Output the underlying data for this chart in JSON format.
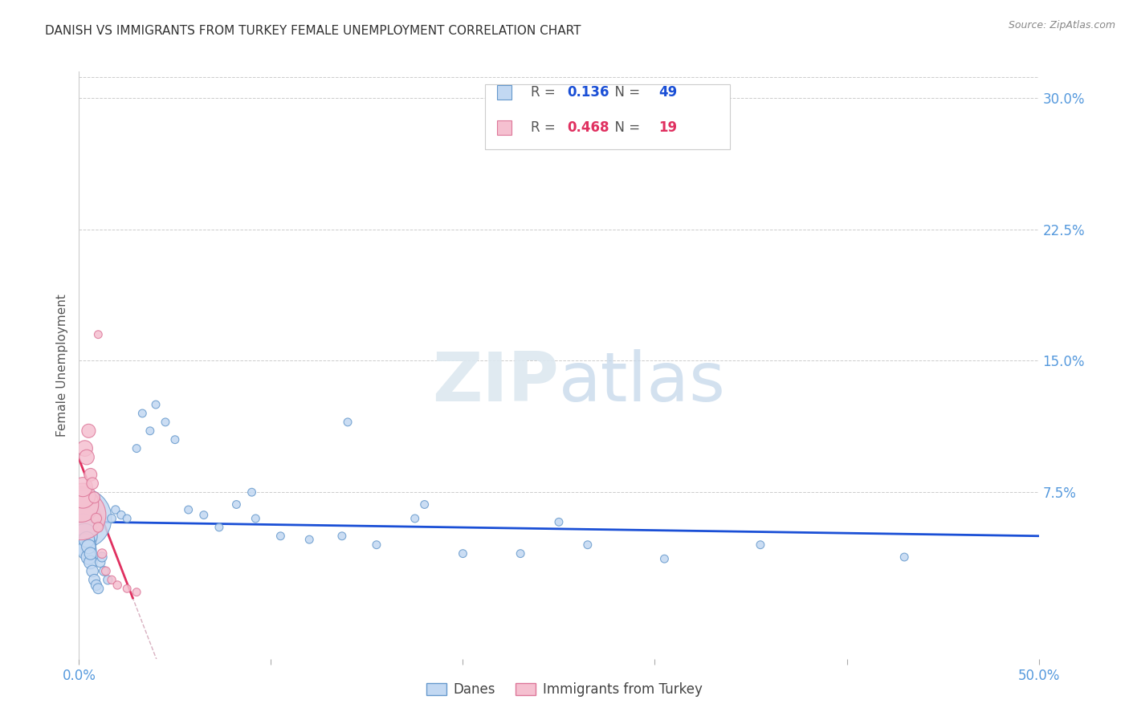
{
  "title": "DANISH VS IMMIGRANTS FROM TURKEY FEMALE UNEMPLOYMENT CORRELATION CHART",
  "source": "Source: ZipAtlas.com",
  "ylabel": "Female Unemployment",
  "xlim": [
    0.0,
    0.5
  ],
  "ylim": [
    -0.02,
    0.315
  ],
  "danes_color": "#c2d8f2",
  "danes_edge_color": "#6699cc",
  "turkey_color": "#f5c0d0",
  "turkey_edge_color": "#dd7799",
  "danes_R": 0.136,
  "danes_N": 49,
  "turkey_R": 0.468,
  "turkey_N": 19,
  "danes_line_color": "#1a4fd6",
  "turkey_line_color": "#e03060",
  "background_color": "#ffffff",
  "legend_danes_label": "Danes",
  "legend_turkey_label": "Immigrants from Turkey",
  "danes_x": [
    0.001,
    0.002,
    0.002,
    0.003,
    0.003,
    0.004,
    0.004,
    0.005,
    0.005,
    0.006,
    0.006,
    0.007,
    0.008,
    0.009,
    0.01,
    0.011,
    0.012,
    0.013,
    0.015,
    0.017,
    0.019,
    0.022,
    0.025,
    0.03,
    0.033,
    0.037,
    0.04,
    0.045,
    0.05,
    0.057,
    0.065,
    0.073,
    0.082,
    0.092,
    0.105,
    0.12,
    0.137,
    0.155,
    0.175,
    0.2,
    0.23,
    0.265,
    0.305,
    0.355,
    0.25,
    0.18,
    0.14,
    0.09,
    0.43
  ],
  "danes_y": [
    0.06,
    0.058,
    0.055,
    0.05,
    0.045,
    0.042,
    0.048,
    0.038,
    0.044,
    0.035,
    0.04,
    0.03,
    0.025,
    0.022,
    0.02,
    0.035,
    0.038,
    0.03,
    0.025,
    0.06,
    0.065,
    0.062,
    0.06,
    0.1,
    0.12,
    0.11,
    0.125,
    0.115,
    0.105,
    0.065,
    0.062,
    0.055,
    0.068,
    0.06,
    0.05,
    0.048,
    0.05,
    0.045,
    0.06,
    0.04,
    0.04,
    0.045,
    0.037,
    0.045,
    0.058,
    0.068,
    0.115,
    0.075,
    0.038
  ],
  "danes_sizes": [
    3000,
    800,
    600,
    500,
    400,
    300,
    200,
    180,
    160,
    140,
    120,
    110,
    100,
    90,
    85,
    80,
    75,
    70,
    65,
    60,
    55,
    55,
    50,
    50,
    50,
    50,
    50,
    50,
    50,
    50,
    50,
    50,
    50,
    50,
    50,
    50,
    50,
    50,
    50,
    50,
    50,
    50,
    50,
    50,
    50,
    50,
    50,
    50,
    50
  ],
  "turkey_x": [
    0.001,
    0.001,
    0.002,
    0.002,
    0.003,
    0.004,
    0.005,
    0.006,
    0.007,
    0.008,
    0.009,
    0.01,
    0.012,
    0.014,
    0.017,
    0.02,
    0.025,
    0.03,
    0.01
  ],
  "turkey_y": [
    0.062,
    0.068,
    0.073,
    0.078,
    0.1,
    0.095,
    0.11,
    0.085,
    0.08,
    0.072,
    0.06,
    0.055,
    0.04,
    0.03,
    0.025,
    0.022,
    0.02,
    0.018,
    0.165
  ],
  "turkey_sizes": [
    2000,
    1000,
    500,
    300,
    200,
    180,
    150,
    130,
    110,
    100,
    90,
    80,
    70,
    60,
    55,
    55,
    50,
    50,
    50
  ],
  "ytick_vals": [
    0.075,
    0.15,
    0.225,
    0.3
  ],
  "ytick_labels": [
    "7.5%",
    "15.0%",
    "22.5%",
    "30.0%"
  ],
  "xtick_vals": [
    0.0,
    0.1,
    0.2,
    0.3,
    0.4,
    0.5
  ],
  "xtick_labels_show": [
    "0.0%",
    "",
    "",
    "",
    "",
    "50.0%"
  ]
}
